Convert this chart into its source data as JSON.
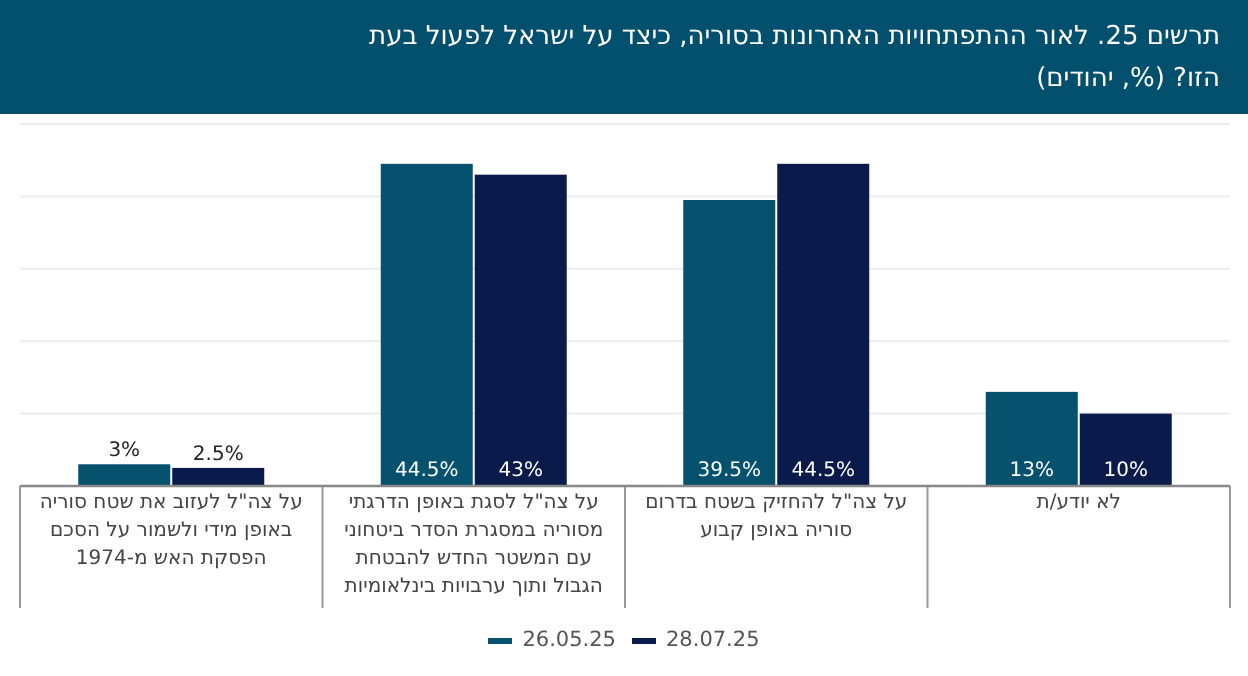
{
  "chart_data": {
    "type": "bar",
    "title": "תרשים 25. לאור ההתפתחויות האחרונות בסוריה, כיצד על ישראל לפעול בעת הזו? (%, יהודים)",
    "categories": [
      "על צה\"ל לעזוב את שטח סוריה באופן מידי ולשמור על הסכם הפסקת האש מ-1974",
      "על צה\"ל לסגת באופן הדרגתי מסוריה במסגרת הסדר ביטחוני עם המשטר החדש להבטחת הגבול ותוך ערבויות בינלאומיות",
      "על צה\"ל להחזיק בשטח בדרום סוריה באופן קבוע",
      "לא יודע/ת"
    ],
    "series": [
      {
        "name": "26.05.25",
        "color": "#05516e",
        "values": [
          3,
          44.5,
          39.5,
          13
        ],
        "value_labels": [
          "3%",
          "44.5%",
          "39.5%",
          "13%"
        ]
      },
      {
        "name": "28.07.25",
        "color": "#0a1a4b",
        "values": [
          2.5,
          43,
          44.5,
          10
        ],
        "value_labels": [
          "2.5%",
          "43%",
          "44.5%",
          "10%"
        ]
      }
    ],
    "ylim": [
      0,
      50
    ],
    "yticks": [
      {
        "value": 0,
        "label": null
      },
      {
        "value": 10,
        "label": null
      },
      {
        "value": 20,
        "label": null
      },
      {
        "value": 30,
        "label": null
      },
      {
        "value": 40,
        "label": null
      },
      {
        "value": 50,
        "label": null
      }
    ],
    "tick_labels": "x",
    "grid": "y",
    "legend": "bottom"
  }
}
